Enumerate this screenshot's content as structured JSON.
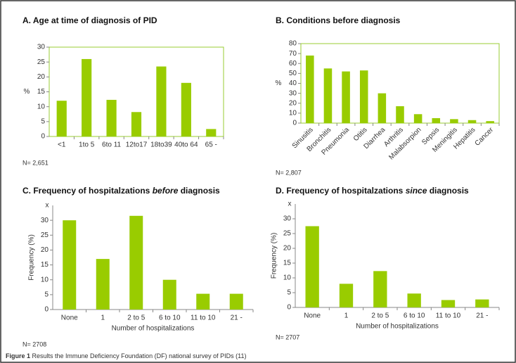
{
  "chart_data": [
    {
      "type": "bar",
      "title_parts": [
        "A. Age at time of diagnosis of PID"
      ],
      "ylabel": "%",
      "categories": [
        "<1",
        "1to 5",
        "6to 11",
        "12to17",
        "18to39",
        "40to 64",
        "65 -"
      ],
      "values": [
        12,
        26,
        12.3,
        8.2,
        23.5,
        18,
        2.5
      ],
      "color": "#99cc00",
      "ylim": [
        0,
        30
      ],
      "yticks": [
        0,
        5,
        10,
        15,
        20,
        25,
        30
      ],
      "frame": true,
      "note": "N= 2,651"
    },
    {
      "type": "bar",
      "title_parts": [
        "B. Conditions before diagnosis"
      ],
      "ylabel": "%",
      "categories": [
        "Sinusitis",
        "Bronchitis",
        "Pneumonia",
        "Otitis",
        "Diarrhea",
        "Arthritis",
        "Malabsorpion",
        "Sepsis",
        "Meningitis",
        "Hepatitis",
        "Cancer"
      ],
      "values": [
        68,
        55,
        52,
        53,
        30,
        17,
        9,
        5,
        4,
        3,
        2
      ],
      "color": "#99cc00",
      "ylim": [
        0,
        80
      ],
      "yticks": [
        0,
        10,
        20,
        30,
        40,
        50,
        60,
        70,
        80
      ],
      "frame": true,
      "note": "N= 2,807"
    },
    {
      "type": "bar",
      "title_parts": [
        "C. Frequency of hospitalzations ",
        "before",
        " diagnosis"
      ],
      "ylabel": "Frequency (%)",
      "xlabel": "Number of hospitalizations",
      "axis_top_mark": "x",
      "categories": [
        "None",
        "1",
        "2 to 5",
        "6 to 10",
        "11 to 10",
        "21 -"
      ],
      "values": [
        30,
        17,
        31.5,
        10,
        5.3,
        5.3
      ],
      "color": "#99cc00",
      "ylim": [
        0,
        35
      ],
      "yticks": [
        0,
        5,
        10,
        15,
        20,
        25,
        30
      ],
      "frame": false,
      "note": "N= 2708"
    },
    {
      "type": "bar",
      "title_parts": [
        "D. Frequency of hospitalzations ",
        "since",
        " diagnosis"
      ],
      "ylabel": "Frequency (%)",
      "xlabel": "Number of hospitalizations",
      "axis_top_mark": "x",
      "categories": [
        "None",
        "1",
        "2 to 5",
        "6 to 10",
        "11 to 10",
        "21 -"
      ],
      "values": [
        27.5,
        8,
        12.3,
        4.7,
        2.5,
        2.7
      ],
      "color": "#99cc00",
      "ylim": [
        0,
        35
      ],
      "yticks": [
        0,
        5,
        10,
        15,
        20,
        25,
        30
      ],
      "frame": false,
      "note": "N= 2707"
    }
  ],
  "caption": {
    "label": "Figure 1",
    "text": " Results the Immune Deficiency Foundation (DF) national survey of PIDs (11)"
  }
}
